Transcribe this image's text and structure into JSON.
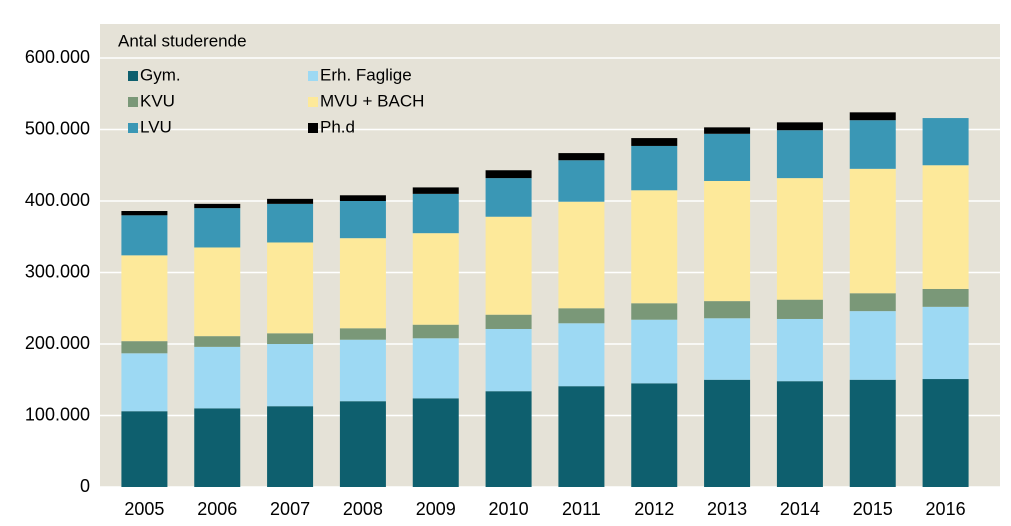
{
  "chart_data": {
    "type": "stacked_bar",
    "y_label": "Antal studerende",
    "categories": [
      "2005",
      "2006",
      "2007",
      "2008",
      "2009",
      "2010",
      "2011",
      "2012",
      "2013",
      "2014",
      "2015",
      "2016"
    ],
    "series": [
      {
        "name": "Gym.",
        "color": "#0e5f6e",
        "values": [
          106000,
          110000,
          113000,
          120000,
          124000,
          134000,
          141000,
          145000,
          150000,
          148000,
          150000,
          151000
        ]
      },
      {
        "name": "Erh. Faglige",
        "color": "#9dd9f3",
        "values": [
          81000,
          86000,
          87000,
          86000,
          84000,
          87000,
          88000,
          89000,
          86000,
          87000,
          96000,
          101000
        ]
      },
      {
        "name": "KVU",
        "color": "#7a9878",
        "values": [
          17000,
          15000,
          15000,
          16000,
          19000,
          20000,
          21000,
          23000,
          24000,
          27000,
          25000,
          25000
        ]
      },
      {
        "name": "MVU + BACH",
        "color": "#fde99a",
        "values": [
          120000,
          124000,
          127000,
          126000,
          128000,
          137000,
          149000,
          158000,
          168000,
          170000,
          174000,
          173000
        ]
      },
      {
        "name": "LVU",
        "color": "#3a97b5",
        "values": [
          56000,
          55000,
          54000,
          52000,
          55000,
          54000,
          58000,
          62000,
          66000,
          67000,
          68000,
          66000
        ]
      },
      {
        "name": "Ph.d",
        "color": "#000000",
        "values": [
          6000,
          6000,
          7000,
          8000,
          9000,
          11000,
          10000,
          11000,
          9000,
          11000,
          11000,
          null
        ]
      }
    ],
    "ylim": [
      0,
      600000
    ],
    "yticks": [
      0,
      {
        "value": 100000,
        "label": "100.000"
      },
      {
        "value": 200000,
        "label": "200.000"
      },
      {
        "value": 300000,
        "label": "300.000"
      },
      {
        "value": 400000,
        "label": "400.000"
      },
      {
        "value": 500000,
        "label": "500.000"
      },
      {
        "value": 600000,
        "label": "600.000"
      }
    ],
    "grid": true,
    "background": "#e5e2d7"
  }
}
